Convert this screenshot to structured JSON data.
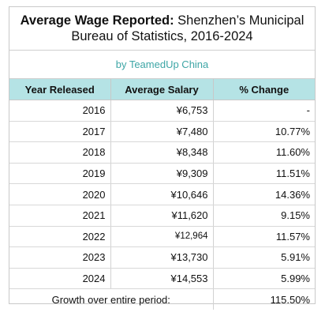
{
  "header": {
    "title_bold": "Average Wage Reported:",
    "title_rest_line1": " Shenzhen’s Municipal",
    "title_line2": "Bureau of Statistics, 2016-2024",
    "byline": "by TeamedUp China",
    "byline_color": "#3ea6a6",
    "header_bg_color": "#b5e3e5"
  },
  "chart_data": {
    "type": "table",
    "title": "Average Wage Reported: Shenzhen’s Municipal Bureau of Statistics, 2016-2024",
    "subtitle": "by TeamedUp China",
    "columns": [
      "Year Released",
      "Average Salary",
      "% Change"
    ],
    "rows": [
      [
        "2016",
        "¥6,753",
        "-"
      ],
      [
        "2017",
        "¥7,480",
        "10.77%"
      ],
      [
        "2018",
        "¥8,348",
        "11.60%"
      ],
      [
        "2019",
        "¥9,309",
        "11.51%"
      ],
      [
        "2020",
        "¥10,646",
        "14.36%"
      ],
      [
        "2021",
        "¥11,620",
        "9.15%"
      ],
      [
        "2022",
        "¥12,964",
        "11.57%"
      ],
      [
        "2023",
        "¥13,730",
        "5.91%"
      ],
      [
        "2024",
        "¥14,553",
        "5.99%"
      ]
    ],
    "footer": {
      "label": "Growth over entire period:",
      "value": "115.50%"
    }
  }
}
